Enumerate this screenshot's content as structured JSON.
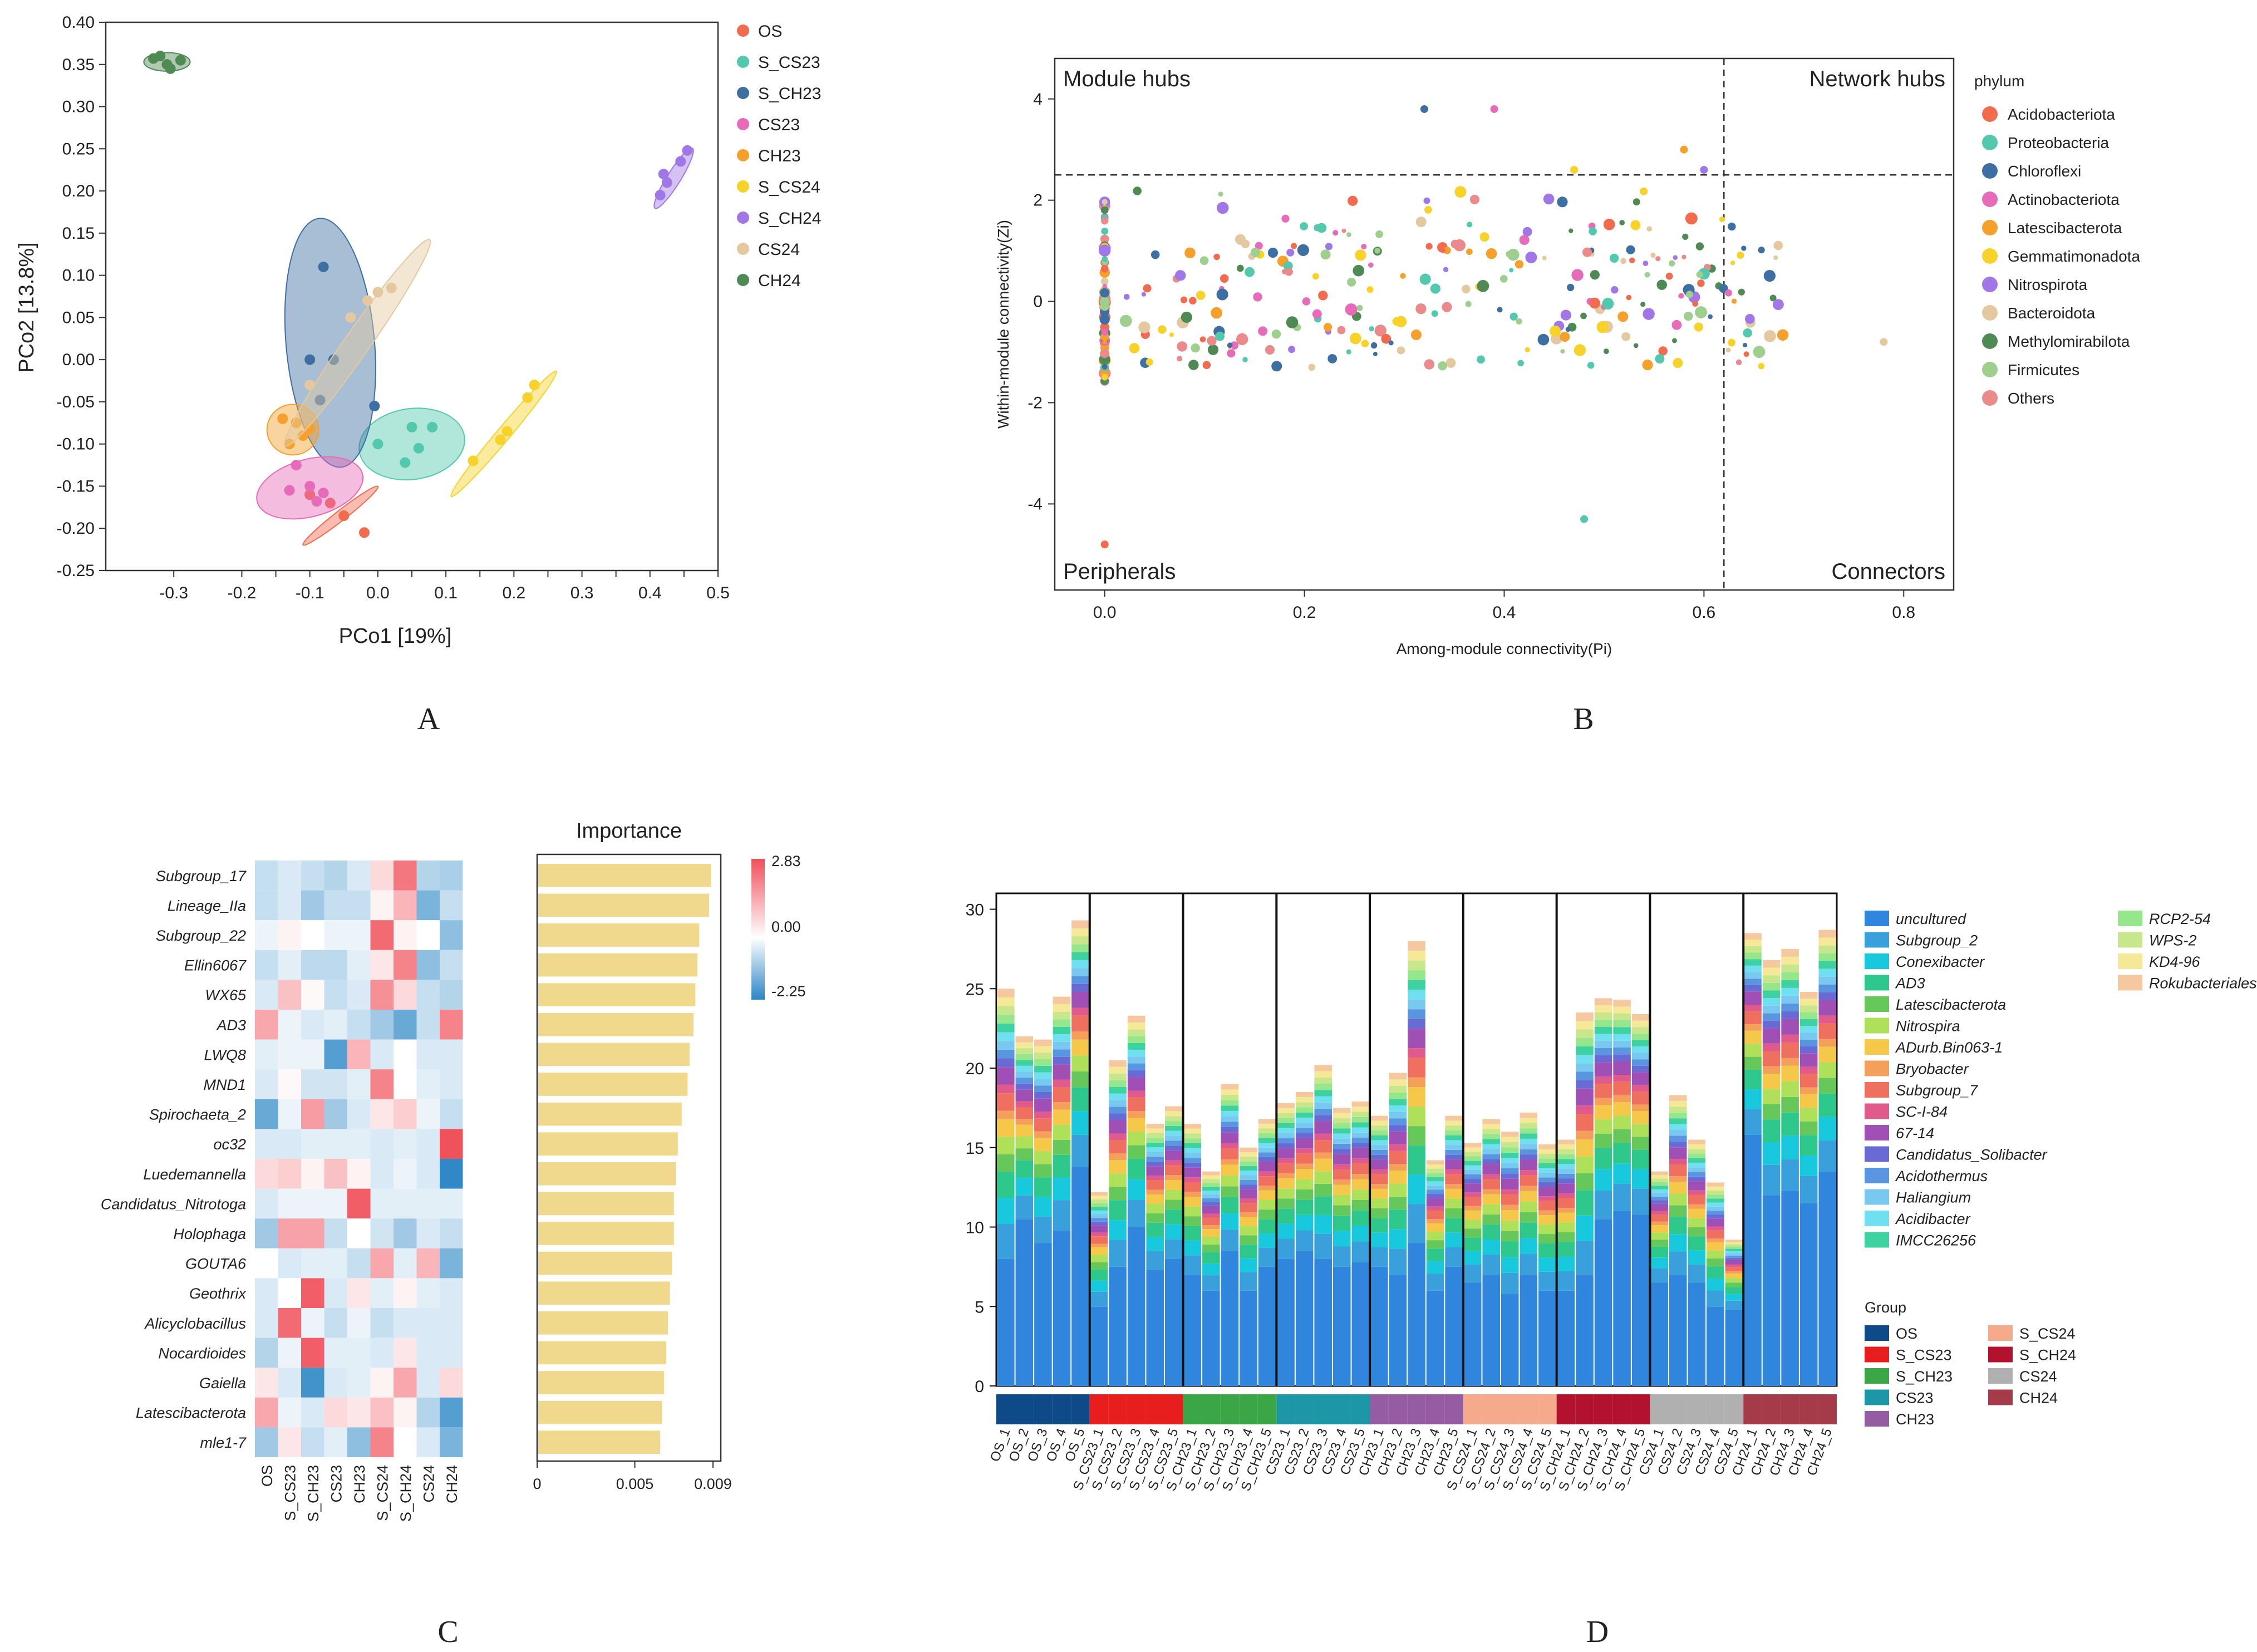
{
  "panel_labels": [
    "A",
    "B",
    "C",
    "D"
  ],
  "chart_data": [
    {
      "panel": "A",
      "type": "scatter",
      "xlabel": "PCo1 [19%]",
      "ylabel": "PCo2 [13.8%]",
      "xlim": [
        -0.4,
        0.5
      ],
      "ylim": [
        -0.25,
        0.4
      ],
      "xticks": [
        "-0.3",
        "-0.2",
        "-0.15",
        "-0.1",
        "-0.05",
        "0.0",
        "0.05",
        "0.1",
        "0.15",
        "0.2",
        "0.25",
        "0.3",
        "0.35",
        "0.4",
        "0.45",
        "0.5"
      ],
      "xtick_values": [
        -0.3,
        -0.2,
        -0.15,
        -0.1,
        -0.05,
        0.0,
        0.05,
        0.1,
        0.15,
        0.2,
        0.25,
        0.3,
        0.35,
        0.4,
        0.45,
        0.5
      ],
      "xtick_labels": [
        "-0.3",
        "-0.2",
        "-0.1",
        "0.0",
        "0.1",
        "0.2",
        "0.3",
        "0.4",
        "0.5"
      ],
      "xtick_label_values": [
        -0.3,
        -0.2,
        -0.1,
        0.0,
        0.1,
        0.2,
        0.3,
        0.4,
        0.5
      ],
      "ytick_labels": [
        "-0.25",
        "-0.20",
        "-0.15",
        "-0.10",
        "-0.05",
        "0.00",
        "0.05",
        "0.10",
        "0.15",
        "0.20",
        "0.25",
        "0.30",
        "0.35",
        "0.40"
      ],
      "ytick_values": [
        -0.25,
        -0.2,
        -0.15,
        -0.1,
        -0.05,
        0.0,
        0.05,
        0.1,
        0.15,
        0.2,
        0.25,
        0.3,
        0.35,
        0.4
      ],
      "series": [
        {
          "name": "OS",
          "color": "#f26b4f",
          "points": [
            [
              -0.1,
              -0.16
            ],
            [
              -0.07,
              -0.17
            ],
            [
              -0.05,
              -0.185
            ],
            [
              -0.02,
              -0.205
            ],
            [
              -0.1,
              -0.16
            ]
          ],
          "ellipse": {
            "cx": -0.055,
            "cy": -0.185,
            "rx": 0.07,
            "ry": 0.006,
            "angle": 38
          }
        },
        {
          "name": "S_CS23",
          "color": "#52c9ad",
          "points": [
            [
              0.0,
              -0.1
            ],
            [
              0.05,
              -0.08
            ],
            [
              0.08,
              -0.08
            ],
            [
              0.06,
              -0.105
            ],
            [
              0.04,
              -0.122
            ]
          ],
          "ellipse": {
            "cx": 0.05,
            "cy": -0.1,
            "rx": 0.078,
            "ry": 0.042,
            "angle": 8
          }
        },
        {
          "name": "S_CH23",
          "color": "#3d6fa2",
          "points": [
            [
              -0.08,
              0.11
            ],
            [
              -0.1,
              0.0
            ],
            [
              -0.065,
              0.0
            ],
            [
              -0.085,
              -0.048
            ],
            [
              -0.005,
              -0.055
            ]
          ],
          "ellipse": {
            "cx": -0.07,
            "cy": 0.02,
            "rx": 0.065,
            "ry": 0.148,
            "angle": 5
          }
        },
        {
          "name": "CS23",
          "color": "#e66bb8",
          "points": [
            [
              -0.12,
              -0.125
            ],
            [
              -0.13,
              -0.155
            ],
            [
              -0.1,
              -0.15
            ],
            [
              -0.09,
              -0.168
            ],
            [
              -0.08,
              -0.158
            ]
          ],
          "ellipse": {
            "cx": -0.1,
            "cy": -0.152,
            "rx": 0.08,
            "ry": 0.034,
            "angle": 15
          }
        },
        {
          "name": "CH23",
          "color": "#f5a02a",
          "points": [
            [
              -0.14,
              -0.07
            ],
            [
              -0.12,
              -0.075
            ],
            [
              -0.11,
              -0.09
            ],
            [
              -0.13,
              -0.1
            ],
            [
              -0.1,
              -0.082
            ]
          ],
          "ellipse": {
            "cx": -0.125,
            "cy": -0.083,
            "rx": 0.038,
            "ry": 0.03,
            "angle": 0
          }
        },
        {
          "name": "S_CS24",
          "color": "#f7d22a",
          "points": [
            [
              0.14,
              -0.12
            ],
            [
              0.18,
              -0.095
            ],
            [
              0.19,
              -0.085
            ],
            [
              0.22,
              -0.045
            ],
            [
              0.23,
              -0.03
            ]
          ],
          "ellipse": {
            "cx": 0.185,
            "cy": -0.088,
            "rx": 0.12,
            "ry": 0.008,
            "angle": 50
          }
        },
        {
          "name": "S_CH24",
          "color": "#a077e6",
          "points": [
            [
              0.415,
              0.195
            ],
            [
              0.425,
              0.21
            ],
            [
              0.42,
              0.22
            ],
            [
              0.445,
              0.235
            ],
            [
              0.455,
              0.248
            ]
          ],
          "ellipse": {
            "cx": 0.435,
            "cy": 0.215,
            "rx": 0.052,
            "ry": 0.008,
            "angle": 58
          }
        },
        {
          "name": "CS24",
          "color": "#e4c9a0",
          "points": [
            [
              -0.1,
              -0.03
            ],
            [
              -0.04,
              0.05
            ],
            [
              -0.015,
              0.07
            ],
            [
              0.0,
              0.08
            ],
            [
              0.02,
              0.085
            ]
          ],
          "ellipse": {
            "cx": -0.03,
            "cy": 0.02,
            "rx": 0.185,
            "ry": 0.015,
            "angle": 55
          }
        },
        {
          "name": "CH24",
          "color": "#4f8a55",
          "points": [
            [
              -0.33,
              0.357
            ],
            [
              -0.31,
              0.35
            ],
            [
              -0.29,
              0.355
            ],
            [
              -0.32,
              0.36
            ],
            [
              -0.305,
              0.345
            ]
          ],
          "ellipse": {
            "cx": -0.31,
            "cy": 0.353,
            "rx": 0.034,
            "ry": 0.011,
            "angle": 0
          }
        }
      ]
    },
    {
      "panel": "B",
      "type": "scatter",
      "xlabel": "Among-module connectivity(Pi)",
      "ylabel": "Within-module connectivity(Zi)",
      "xlim": [
        -0.05,
        0.85
      ],
      "ylim": [
        -5.7,
        4.8
      ],
      "xticks": [
        "0.0",
        "0.2",
        "0.4",
        "0.6",
        "0.8"
      ],
      "xtick_values": [
        0,
        0.2,
        0.4,
        0.6,
        0.8
      ],
      "yticks": [
        "-4",
        "-2",
        "0",
        "2",
        "4"
      ],
      "ytick_values": [
        -4,
        -2,
        0,
        2,
        4
      ],
      "thresholds": {
        "x": 0.62,
        "y": 2.5
      },
      "quadrant_labels": [
        "Module hubs",
        "Network hubs",
        "Peripherals",
        "Connectors"
      ],
      "legend_title": "phylum",
      "categories": [
        "Acidobacteriota",
        "Proteobacteria",
        "Chloroflexi",
        "Actinobacteriota",
        "Latescibacterota",
        "Gemmatimonadota",
        "Nitrospirota",
        "Bacteroidota",
        "Methylomirabilota",
        "Firmicutes",
        "Others"
      ],
      "colors": [
        "#f26b4f",
        "#52c9ad",
        "#3d6fa2",
        "#e66bb8",
        "#f5a02a",
        "#f7d22a",
        "#a077e6",
        "#e4c9a0",
        "#4f8a55",
        "#9fcf8f",
        "#ea8a8a"
      ],
      "point_count": 360,
      "notable_points": [
        [
          0.0,
          -4.8
        ],
        [
          0.48,
          -4.3
        ],
        [
          0.32,
          3.8
        ],
        [
          0.39,
          3.8
        ],
        [
          0.58,
          3.0
        ],
        [
          0.47,
          2.6
        ],
        [
          0.6,
          2.6
        ],
        [
          0.78,
          -0.8
        ]
      ]
    },
    {
      "panel": "C",
      "type": "heatmap",
      "columns": [
        "OS",
        "S_CS23",
        "S_CH23",
        "CS23",
        "CH23",
        "S_CS24",
        "S_CH24",
        "CS24",
        "CH24"
      ],
      "rows": [
        "Subgroup_17",
        "Lineage_IIa",
        "Subgroup_22",
        "Ellin6067",
        "WX65",
        "AD3",
        "LWQ8",
        "MND1",
        "Spirochaeta_2",
        "oc32",
        "Luedemannella",
        "Candidatus_Nitrotoga",
        "Holophaga",
        "GOUTA6",
        "Geothrix",
        "Alicyclobacillus",
        "Nocardioides",
        "Gaiella",
        "Latescibacterota",
        "mle1-7"
      ],
      "values": [
        [
          -0.6,
          -0.4,
          -0.6,
          -0.8,
          -0.4,
          0.6,
          2.2,
          -0.8,
          -0.9
        ],
        [
          -0.6,
          -0.4,
          -1.0,
          -0.6,
          -0.6,
          0.2,
          1.2,
          -1.4,
          -0.6
        ],
        [
          -0.2,
          0.2,
          0.0,
          -0.2,
          -0.2,
          2.4,
          0.2,
          0.0,
          -1.2
        ],
        [
          -0.6,
          -0.3,
          -0.7,
          -0.7,
          -0.3,
          0.4,
          2.0,
          -1.2,
          -0.6
        ],
        [
          -0.4,
          1.0,
          0.1,
          -0.6,
          -0.4,
          1.8,
          0.6,
          -0.6,
          -0.8
        ],
        [
          1.4,
          -0.2,
          -0.4,
          -0.3,
          -0.6,
          -1.0,
          -1.6,
          -0.6,
          2.0
        ],
        [
          -0.3,
          -0.2,
          -0.2,
          -1.8,
          1.2,
          -0.4,
          0.0,
          -0.4,
          -0.4
        ],
        [
          -0.4,
          0.1,
          -0.5,
          -0.5,
          -0.3,
          2.0,
          0.0,
          -0.3,
          -0.4
        ],
        [
          -1.6,
          -0.2,
          1.6,
          -1.0,
          -0.4,
          0.4,
          0.8,
          -0.2,
          -0.6
        ],
        [
          -0.4,
          -0.4,
          -0.3,
          -0.3,
          -0.3,
          -0.4,
          -0.3,
          -0.4,
          2.8
        ],
        [
          0.6,
          0.8,
          0.2,
          1.0,
          0.2,
          -0.4,
          -0.2,
          -0.4,
          -2.2
        ],
        [
          -0.4,
          -0.2,
          -0.2,
          -0.2,
          2.6,
          -0.3,
          -0.3,
          -0.3,
          -0.3
        ],
        [
          -1.0,
          1.5,
          1.5,
          -0.6,
          0.0,
          -0.5,
          -1.0,
          -0.4,
          -0.6
        ],
        [
          0.0,
          -0.4,
          -0.3,
          -0.3,
          -0.6,
          1.4,
          -0.3,
          1.2,
          -1.4
        ],
        [
          -0.4,
          0.0,
          2.6,
          -0.4,
          0.4,
          -0.3,
          0.2,
          -0.3,
          -0.4
        ],
        [
          -0.4,
          2.4,
          -0.2,
          -0.6,
          -0.2,
          -0.6,
          -0.4,
          -0.4,
          -0.4
        ],
        [
          -0.8,
          -0.2,
          2.6,
          -0.3,
          -0.3,
          -0.4,
          0.4,
          -0.4,
          -0.4
        ],
        [
          0.4,
          -0.4,
          -2.0,
          -0.4,
          -0.3,
          0.2,
          1.4,
          -0.4,
          0.6
        ],
        [
          1.4,
          -0.2,
          -0.4,
          0.6,
          0.4,
          1.0,
          0.2,
          -0.8,
          -1.8
        ],
        [
          -1.0,
          0.4,
          -0.6,
          -0.3,
          -1.2,
          2.0,
          0.0,
          -0.4,
          -1.4
        ]
      ],
      "colorbar": {
        "labels": [
          "2.83",
          "0.00",
          "-2.25"
        ],
        "values": [
          2.83,
          0.0,
          -2.25
        ],
        "low": "#2b86c5",
        "mid": "#ffffff",
        "high": "#f0505a"
      },
      "importance_title": "Importance",
      "importance_ticks": [
        "0",
        "0.005",
        "0.009"
      ],
      "importance_tick_values": [
        0,
        0.005,
        0.009
      ],
      "importance_color": "#f0d88c",
      "importance": [
        0.0089,
        0.0088,
        0.0083,
        0.0082,
        0.0081,
        0.008,
        0.0078,
        0.0077,
        0.0074,
        0.0072,
        0.0071,
        0.007,
        0.007,
        0.0069,
        0.0068,
        0.0067,
        0.0066,
        0.0065,
        0.0064,
        0.0063
      ]
    },
    {
      "panel": "D",
      "type": "bar",
      "stacked": true,
      "ylim": [
        0,
        31
      ],
      "yticks": [
        "0",
        "5",
        "10",
        "15",
        "20",
        "25",
        "30"
      ],
      "ytick_values": [
        0,
        5,
        10,
        15,
        20,
        25,
        30
      ],
      "categories": [
        "OS_1",
        "OS_2",
        "OS_3",
        "OS_4",
        "OS_5",
        "S_CS23_1",
        "S_CS23_2",
        "S_CS23_3",
        "S_CS23_4",
        "S_CS23_5",
        "S_CH23_1",
        "S_CH23_2",
        "S_CH23_3",
        "S_CH23_4",
        "S_CH23_5",
        "CS23_1",
        "CS23_2",
        "CS23_3",
        "CS23_4",
        "CS23_5",
        "CH23_1",
        "CH23_2",
        "CH23_3",
        "CH23_4",
        "CH23_5",
        "S_CS24_1",
        "S_CS24_2",
        "S_CS24_3",
        "S_CS24_4",
        "S_CS24_5",
        "S_CH24_1",
        "S_CH24_2",
        "S_CH24_3",
        "S_CH24_4",
        "S_CH24_5",
        "CS24_1",
        "CS24_2",
        "CS24_3",
        "CS24_4",
        "CS24_5",
        "CH24_1",
        "CH24_2",
        "CH24_3",
        "CH24_4",
        "CH24_5"
      ],
      "totals": [
        25.0,
        22.0,
        21.8,
        24.5,
        29.3,
        12.2,
        20.5,
        23.3,
        16.5,
        17.6,
        16.5,
        13.5,
        19.0,
        15.0,
        16.8,
        17.8,
        18.5,
        20.2,
        17.5,
        17.9,
        17.0,
        19.7,
        28.0,
        14.2,
        17.0,
        15.3,
        16.8,
        16.0,
        17.2,
        15.2,
        15.5,
        23.5,
        24.4,
        24.3,
        23.4,
        13.5,
        18.3,
        15.5,
        12.8,
        9.2,
        28.5,
        26.8,
        27.5,
        24.8,
        28.7
      ],
      "base_values": [
        8.0,
        10.5,
        9.0,
        9.8,
        13.8,
        5.0,
        7.5,
        10.0,
        7.3,
        8.0,
        7.0,
        6.0,
        8.5,
        6.0,
        7.5,
        8.0,
        8.5,
        8.0,
        7.5,
        7.8,
        7.5,
        7.0,
        9.0,
        6.0,
        7.5,
        6.5,
        7.0,
        5.8,
        7.0,
        6.0,
        6.0,
        7.0,
        10.5,
        11.0,
        10.8,
        6.5,
        7.0,
        6.5,
        5.0,
        4.8,
        15.8,
        12.0,
        12.3,
        11.5,
        13.5
      ],
      "taxa": [
        "uncultured",
        "Subgroup_2",
        "Conexibacter",
        "AD3",
        "Latescibacterota",
        "Nitrospira",
        "ADurb.Bin063-1",
        "Bryobacter",
        "Subgroup_7",
        "SC-I-84",
        "67-14",
        "Candidatus_Solibacter",
        "Acidothermus",
        "Haliangium",
        "Acidibacter",
        "IMCC26256",
        "RCP2-54",
        "WPS-2",
        "KD4-96",
        "Rokubacteriales"
      ],
      "taxa_colors": [
        "#2f86dc",
        "#3aa0dc",
        "#18c8dc",
        "#2ec88c",
        "#66c85a",
        "#aee05a",
        "#f5c84a",
        "#f5a05a",
        "#f07060",
        "#e05a8c",
        "#a050b4",
        "#6a6ad4",
        "#5a96e0",
        "#78c8f0",
        "#70e0f0",
        "#3ed2a0",
        "#96e68c",
        "#c8e68c",
        "#f5e896",
        "#f5c8a0"
      ],
      "taxa_weights": [
        5,
        4,
        3,
        3,
        2,
        2,
        2,
        1,
        2,
        1,
        2,
        1,
        1,
        1,
        1,
        1,
        1,
        1,
        1,
        1
      ],
      "group_title": "Group",
      "groups": [
        "OS",
        "S_CS23",
        "S_CH23",
        "CS23",
        "CH23",
        "S_CS24",
        "S_CH24",
        "CS24",
        "CH24"
      ],
      "group_colors": [
        "#0d4a87",
        "#e81e1e",
        "#3aa646",
        "#1d96a8",
        "#955ca3",
        "#f5aa8c",
        "#b3122f",
        "#b0b0b0",
        "#a53b48"
      ]
    }
  ]
}
